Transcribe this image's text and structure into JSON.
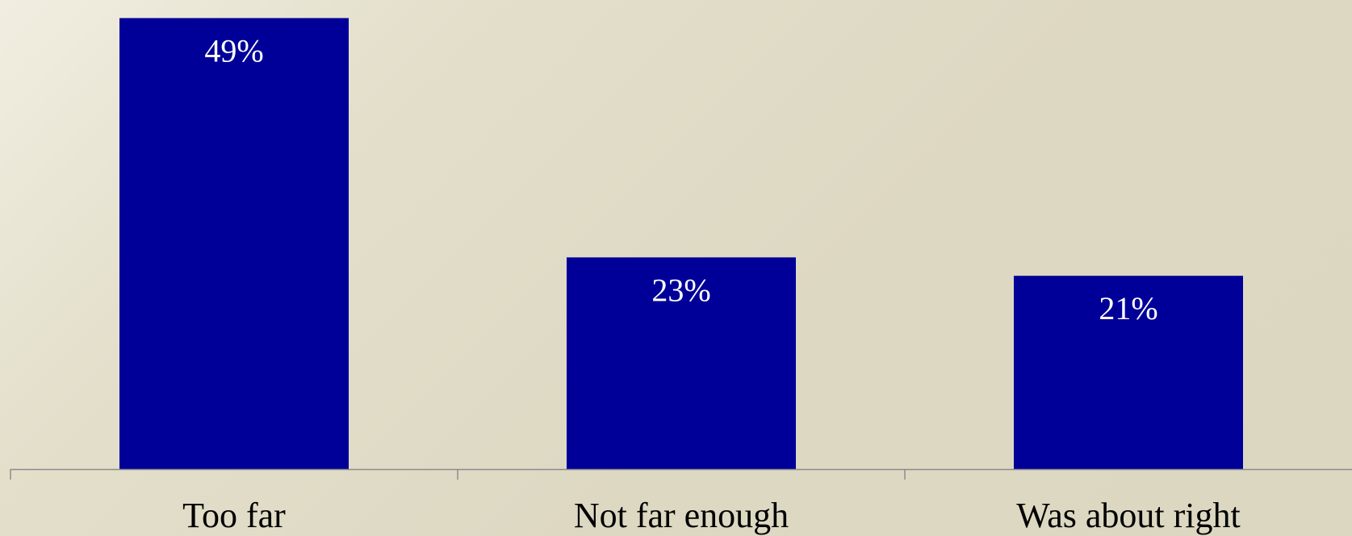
{
  "chart_data": {
    "type": "bar",
    "categories": [
      "Too far",
      "Not far enough",
      "Was about right"
    ],
    "values": [
      49,
      23,
      21
    ],
    "data_labels": [
      "49%",
      "23%",
      "21%"
    ],
    "ylim": [
      0,
      50
    ],
    "grid": false,
    "legend": "none",
    "bar_color": "#000099",
    "axis_color": "#8c8c8c"
  }
}
